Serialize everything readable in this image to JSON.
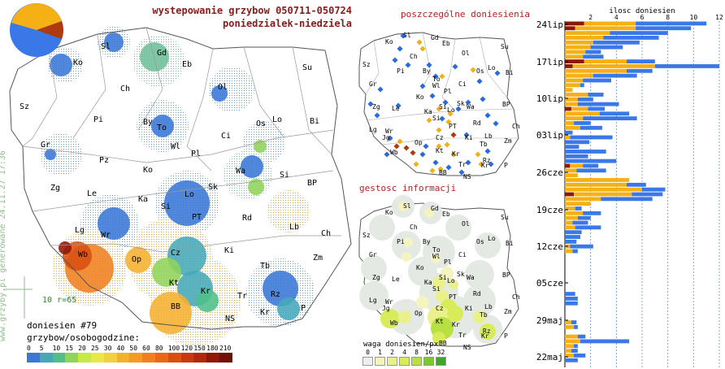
{
  "header": {
    "title_line1": "wystepowanie grzybow 050711-050724",
    "title_line2": "poniedzialek-niedziela"
  },
  "panels": {
    "reports_title": "poszczególne doniesienia",
    "density_title": "gestosc informacji"
  },
  "watermark": "www.grzyby.pl generowane 24.11.27 17:36",
  "main_map": {
    "report_count": "doniesien #79",
    "scale_title": "grzybow/osobogodzine:",
    "scale_note": "10 r=65",
    "scale_ticks": [
      "0",
      "5",
      "10",
      "15",
      "20",
      "25",
      "30",
      "40",
      "50",
      "60",
      "80",
      "100",
      "120",
      "150",
      "180",
      "210"
    ],
    "scale_colors": [
      "#3a78d6",
      "#45a8b8",
      "#4fbf8a",
      "#8fd45a",
      "#c8e84a",
      "#e8e84a",
      "#f0d040",
      "#f5b030",
      "#f59a28",
      "#f08020",
      "#e86818",
      "#d85010",
      "#c83a0a",
      "#b02a08",
      "#901808",
      "#701008"
    ],
    "region_labels": [
      "Sl",
      "Gd",
      "Ko",
      "Eb",
      "Su",
      "Sz",
      "Ch",
      "Ol",
      "Pi",
      "By",
      "To",
      "Os",
      "Lo",
      "Bi",
      "Gr",
      "Wl",
      "Pl",
      "Ci",
      "Pz",
      "Ko",
      "Wa",
      "Si",
      "Zg",
      "Le",
      "Ka",
      "Lo",
      "Sk",
      "Si",
      "BP",
      "PT",
      "Rd",
      "Lb",
      "Lg",
      "Wr",
      "Ch",
      "Wb",
      "Op",
      "Cz",
      "Ki",
      "Zm",
      "Kt",
      "Tb",
      "Rz",
      "Kr",
      "Tr",
      "BB",
      "NS",
      "Kr",
      "P"
    ]
  },
  "reports_map": {
    "region_labels": [
      "Sl",
      "Gd",
      "Eb",
      "Ko",
      "Ol",
      "Su",
      "Sz",
      "Ch",
      "Pi",
      "By",
      "To",
      "Os",
      "Lo",
      "Bi",
      "Gr",
      "Wl",
      "Ci",
      "Pl",
      "Zg",
      "Le",
      "Ko",
      "Wa",
      "Ka",
      "Si",
      "BP",
      "Lo",
      "Sk",
      "Lg",
      "Wr",
      "Si",
      "PT",
      "Rd",
      "Lb",
      "Ch",
      "Jg",
      "Op",
      "Cz",
      "Ki",
      "Zm",
      "Wb",
      "Kt",
      "Tb",
      "Rz",
      "Kr",
      "Tr",
      "BB",
      "NS",
      "Kr",
      "P"
    ]
  },
  "density_map": {
    "weight_title": "waga doniesien/px",
    "weight_ticks": [
      "0",
      "1",
      "2",
      "4",
      "8",
      "16",
      "32"
    ],
    "weight_colors": [
      "#eeeeee",
      "#f4f4c0",
      "#eaf08a",
      "#d8ec5a",
      "#b8e040",
      "#7cc830",
      "#3aa828"
    ],
    "region_labels": [
      "Sl",
      "Gd",
      "Eb",
      "Ko",
      "Ol",
      "Su",
      "Sz",
      "Ch",
      "Pi",
      "By",
      "To",
      "Os",
      "Lo",
      "Bi",
      "Gr",
      "Wl",
      "Ci",
      "Pl",
      "Zg",
      "Le",
      "Ko",
      "Wa",
      "Ka",
      "Si",
      "BP",
      "Lo",
      "Sk",
      "Lg",
      "Wr",
      "Si",
      "PT",
      "Rd",
      "Lb",
      "Ch",
      "Jg",
      "Op",
      "Cz",
      "Ki",
      "Zm",
      "Wb",
      "Kt",
      "Tb",
      "Rz",
      "Kr",
      "Tr",
      "BB",
      "NS",
      "Kr",
      "P"
    ]
  },
  "chart_data": {
    "type": "bar",
    "title": "ilosc doniesien",
    "orientation": "horizontal-stacked",
    "xlim": [
      0,
      12
    ],
    "x_ticks": [
      "2",
      "4",
      "6",
      "8",
      "10",
      "12"
    ],
    "y_labels": [
      "24lip",
      "17lip",
      "10lip",
      "03lip",
      "26cze",
      "19cze",
      "12cze",
      "05cze",
      "29maj",
      "22maj"
    ],
    "series_colors": [
      "#8b1a00",
      "#f5b015",
      "#3a78e8"
    ],
    "rows": [
      [
        1.5,
        5.5,
        11.0
      ],
      [
        0.8,
        5.5,
        9.8
      ],
      [
        0.0,
        3.5,
        8.0
      ],
      [
        0.0,
        3.0,
        7.3
      ],
      [
        0.0,
        2.2,
        5.8
      ],
      [
        0.0,
        2.0,
        4.5
      ],
      [
        0.0,
        1.6,
        2.8
      ],
      [
        0.0,
        1.4,
        3.0
      ],
      [
        1.5,
        4.8,
        7.0
      ],
      [
        0.6,
        7.0,
        12.0
      ],
      [
        0.0,
        4.8,
        6.8
      ],
      [
        0.0,
        2.2,
        5.6
      ],
      [
        0.0,
        1.4,
        3.6
      ],
      [
        0.0,
        1.2,
        1.5
      ],
      [
        0.0,
        0.6,
        0.6
      ],
      [
        0.0,
        1.8,
        3.0
      ],
      [
        0.0,
        1.0,
        2.2
      ],
      [
        0.0,
        1.0,
        4.2
      ],
      [
        0.5,
        1.8,
        3.1
      ],
      [
        0.0,
        2.7,
        5.0
      ],
      [
        0.0,
        1.4,
        5.6
      ],
      [
        0.0,
        0.7,
        2.0
      ],
      [
        0.0,
        1.2,
        2.9
      ],
      [
        0.0,
        0.0,
        0.6
      ],
      [
        0.0,
        0.4,
        3.7
      ],
      [
        0.0,
        0.0,
        1.9
      ],
      [
        0.0,
        0.0,
        1.1
      ],
      [
        0.0,
        0.0,
        3.2
      ],
      [
        0.0,
        0.0,
        1.8
      ],
      [
        0.0,
        0.0,
        4.0
      ],
      [
        0.4,
        1.4,
        2.6
      ],
      [
        0.0,
        0.9,
        3.2
      ],
      [
        0.0,
        1.0,
        1.0
      ],
      [
        0.0,
        5.0,
        5.0
      ],
      [
        0.0,
        4.8,
        6.3
      ],
      [
        0.0,
        6.0,
        7.8
      ],
      [
        0.7,
        5.2,
        7.6
      ],
      [
        0.0,
        2.8,
        6.8
      ],
      [
        0.0,
        2.0,
        2.0
      ],
      [
        0.0,
        0.8,
        1.3
      ],
      [
        0.0,
        1.4,
        2.8
      ],
      [
        0.0,
        1.0,
        2.0
      ],
      [
        0.0,
        0.6,
        1.8
      ],
      [
        0.0,
        0.8,
        2.8
      ],
      [
        0.0,
        0.0,
        1.3
      ],
      [
        0.0,
        0.0,
        1.2
      ],
      [
        0.0,
        0.0,
        0.9
      ],
      [
        0.0,
        0.4,
        2.2
      ],
      [
        0.0,
        0.6,
        1.0
      ],
      [
        0.0,
        0.0,
        0.0
      ],
      [
        0.0,
        0.0,
        0.0
      ],
      [
        0.0,
        0.0,
        0.0
      ],
      [
        0.0,
        0.0,
        0.0
      ],
      [
        0.0,
        0.0,
        0.0
      ],
      [
        0.0,
        0.0,
        0.0
      ],
      [
        0.0,
        0.0,
        0.0
      ],
      [
        0.0,
        0.0,
        0.0
      ],
      [
        0.0,
        0.0,
        0.8
      ],
      [
        0.0,
        0.0,
        1.0
      ],
      [
        0.0,
        0.0,
        1.0
      ],
      [
        0.0,
        0.0,
        0.0
      ],
      [
        0.0,
        0.0,
        0.0
      ],
      [
        0.0,
        0.0,
        0.0
      ],
      [
        0.0,
        0.5,
        0.9
      ],
      [
        0.0,
        0.7,
        1.0
      ],
      [
        0.0,
        0.0,
        0.0
      ],
      [
        0.0,
        1.0,
        1.6
      ],
      [
        0.0,
        1.2,
        5.0
      ],
      [
        0.0,
        0.7,
        1.0
      ],
      [
        0.0,
        0.5,
        1.0
      ],
      [
        0.0,
        0.7,
        1.6
      ],
      [
        0.0,
        0.0,
        1.0
      ],
      [
        0.0,
        0.0,
        0.0
      ]
    ]
  }
}
